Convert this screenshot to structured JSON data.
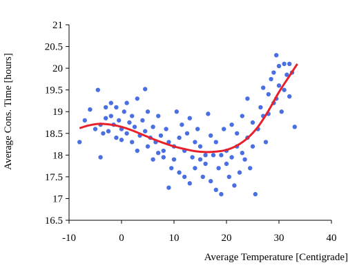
{
  "chart_data": {
    "type": "scatter",
    "title": "",
    "xlabel": "Average Temperature [Centigrade]",
    "ylabel": "Average Cons. Time [hours]",
    "xlim": [
      -10,
      40
    ],
    "ylim": [
      16.5,
      21
    ],
    "x_ticks": [
      -10,
      0,
      10,
      20,
      30,
      40
    ],
    "y_ticks": [
      16.5,
      17,
      17.5,
      18,
      18.5,
      19,
      19.5,
      20,
      20.5,
      21
    ],
    "x_tick_labels": [
      "-10",
      "0",
      "10",
      "20",
      "30",
      "40"
    ],
    "y_tick_labels": [
      "16.5",
      "17",
      "17.5",
      "18",
      "18.5",
      "19",
      "19.5",
      "20",
      "20.5",
      "21"
    ],
    "grid": false,
    "legend": "none",
    "series": [
      {
        "kind": "points",
        "color": "#4a6fe3",
        "points": [
          [
            -8,
            18.3
          ],
          [
            -7,
            18.8
          ],
          [
            -6,
            19.05
          ],
          [
            -5,
            18.6
          ],
          [
            -4.5,
            19.5
          ],
          [
            -4,
            17.95
          ],
          [
            -4,
            18.7
          ],
          [
            -3.5,
            18.5
          ],
          [
            -3,
            19.1
          ],
          [
            -3,
            18.85
          ],
          [
            -2.5,
            18.55
          ],
          [
            -2,
            18.9
          ],
          [
            -2,
            19.2
          ],
          [
            -1.5,
            18.7
          ],
          [
            -1,
            18.4
          ],
          [
            -1,
            19.1
          ],
          [
            -0.5,
            18.8
          ],
          [
            0,
            18.6
          ],
          [
            0,
            18.35
          ],
          [
            0.5,
            19.0
          ],
          [
            1,
            18.5
          ],
          [
            1,
            19.2
          ],
          [
            1.5,
            18.75
          ],
          [
            2,
            18.3
          ],
          [
            2,
            18.9
          ],
          [
            2.5,
            18.65
          ],
          [
            3,
            19.3
          ],
          [
            3,
            18.1
          ],
          [
            3.5,
            18.45
          ],
          [
            4,
            18.8
          ],
          [
            4.5,
            19.52
          ],
          [
            4.5,
            18.55
          ],
          [
            5,
            18.2
          ],
          [
            5,
            19.0
          ],
          [
            5.5,
            18.4
          ],
          [
            6,
            18.65
          ],
          [
            6,
            17.9
          ],
          [
            6.5,
            18.3
          ],
          [
            7,
            18.9
          ],
          [
            7,
            18.05
          ],
          [
            7.5,
            18.45
          ],
          [
            8,
            18.1
          ],
          [
            8,
            17.95
          ],
          [
            8.5,
            18.6
          ],
          [
            9,
            17.25
          ],
          [
            9,
            18.3
          ],
          [
            9.5,
            17.7
          ],
          [
            10,
            18.2
          ],
          [
            10,
            17.9
          ],
          [
            10.5,
            19.0
          ],
          [
            11,
            18.4
          ],
          [
            11,
            17.6
          ],
          [
            11.5,
            18.7
          ],
          [
            12,
            17.5
          ],
          [
            12,
            18.1
          ],
          [
            12.5,
            18.5
          ],
          [
            13,
            17.35
          ],
          [
            13,
            18.85
          ],
          [
            13.5,
            17.95
          ],
          [
            14,
            18.3
          ],
          [
            14,
            17.7
          ],
          [
            14.5,
            18.6
          ],
          [
            15,
            17.9
          ],
          [
            15,
            18.2
          ],
          [
            15.5,
            17.5
          ],
          [
            16,
            17.8
          ],
          [
            16,
            18.0
          ],
          [
            16.5,
            18.95
          ],
          [
            17,
            17.4
          ],
          [
            17,
            18.45
          ],
          [
            17.5,
            18.0
          ],
          [
            18,
            17.2
          ],
          [
            18,
            18.3
          ],
          [
            18.5,
            17.7
          ],
          [
            19,
            18.0
          ],
          [
            19,
            17.1
          ],
          [
            19.5,
            18.6
          ],
          [
            20,
            17.8
          ],
          [
            20,
            18.1
          ],
          [
            20.5,
            17.5
          ],
          [
            21,
            18.7
          ],
          [
            21,
            17.95
          ],
          [
            21.5,
            17.3
          ],
          [
            22,
            18.5
          ],
          [
            22,
            18.2
          ],
          [
            22.5,
            17.6
          ],
          [
            23,
            18.9
          ],
          [
            23,
            18.05
          ],
          [
            23.5,
            17.9
          ],
          [
            24,
            19.3
          ],
          [
            24,
            18.4
          ],
          [
            24.5,
            17.7
          ],
          [
            25,
            18.75
          ],
          [
            25,
            18.2
          ],
          [
            25.5,
            17.1
          ],
          [
            26,
            18.6
          ],
          [
            26.5,
            19.1
          ],
          [
            27,
            18.9
          ],
          [
            27,
            19.55
          ],
          [
            27.5,
            18.3
          ],
          [
            28,
            19.4
          ],
          [
            28,
            18.95
          ],
          [
            28.5,
            19.75
          ],
          [
            29,
            19.2
          ],
          [
            29,
            19.9
          ],
          [
            29.5,
            20.3
          ],
          [
            29.5,
            19.3
          ],
          [
            30,
            20.05
          ],
          [
            30,
            19.6
          ],
          [
            30.5,
            19.0
          ],
          [
            31,
            20.1
          ],
          [
            31,
            19.5
          ],
          [
            31.5,
            19.85
          ],
          [
            32,
            20.1
          ],
          [
            32,
            19.35
          ],
          [
            32.5,
            19.9
          ],
          [
            33,
            18.65
          ]
        ]
      },
      {
        "kind": "trend",
        "color": "#e8202a",
        "points": [
          [
            -8,
            18.62
          ],
          [
            -6,
            18.69
          ],
          [
            -4,
            18.72
          ],
          [
            -2,
            18.7
          ],
          [
            0,
            18.65
          ],
          [
            2,
            18.57
          ],
          [
            4,
            18.47
          ],
          [
            6,
            18.37
          ],
          [
            8,
            18.28
          ],
          [
            10,
            18.2
          ],
          [
            12,
            18.14
          ],
          [
            14,
            18.09
          ],
          [
            16,
            18.07
          ],
          [
            18,
            18.08
          ],
          [
            20,
            18.12
          ],
          [
            22,
            18.22
          ],
          [
            24,
            18.39
          ],
          [
            26,
            18.65
          ],
          [
            28,
            19.02
          ],
          [
            30,
            19.45
          ],
          [
            32,
            19.82
          ],
          [
            33.5,
            20.1
          ]
        ]
      }
    ]
  }
}
